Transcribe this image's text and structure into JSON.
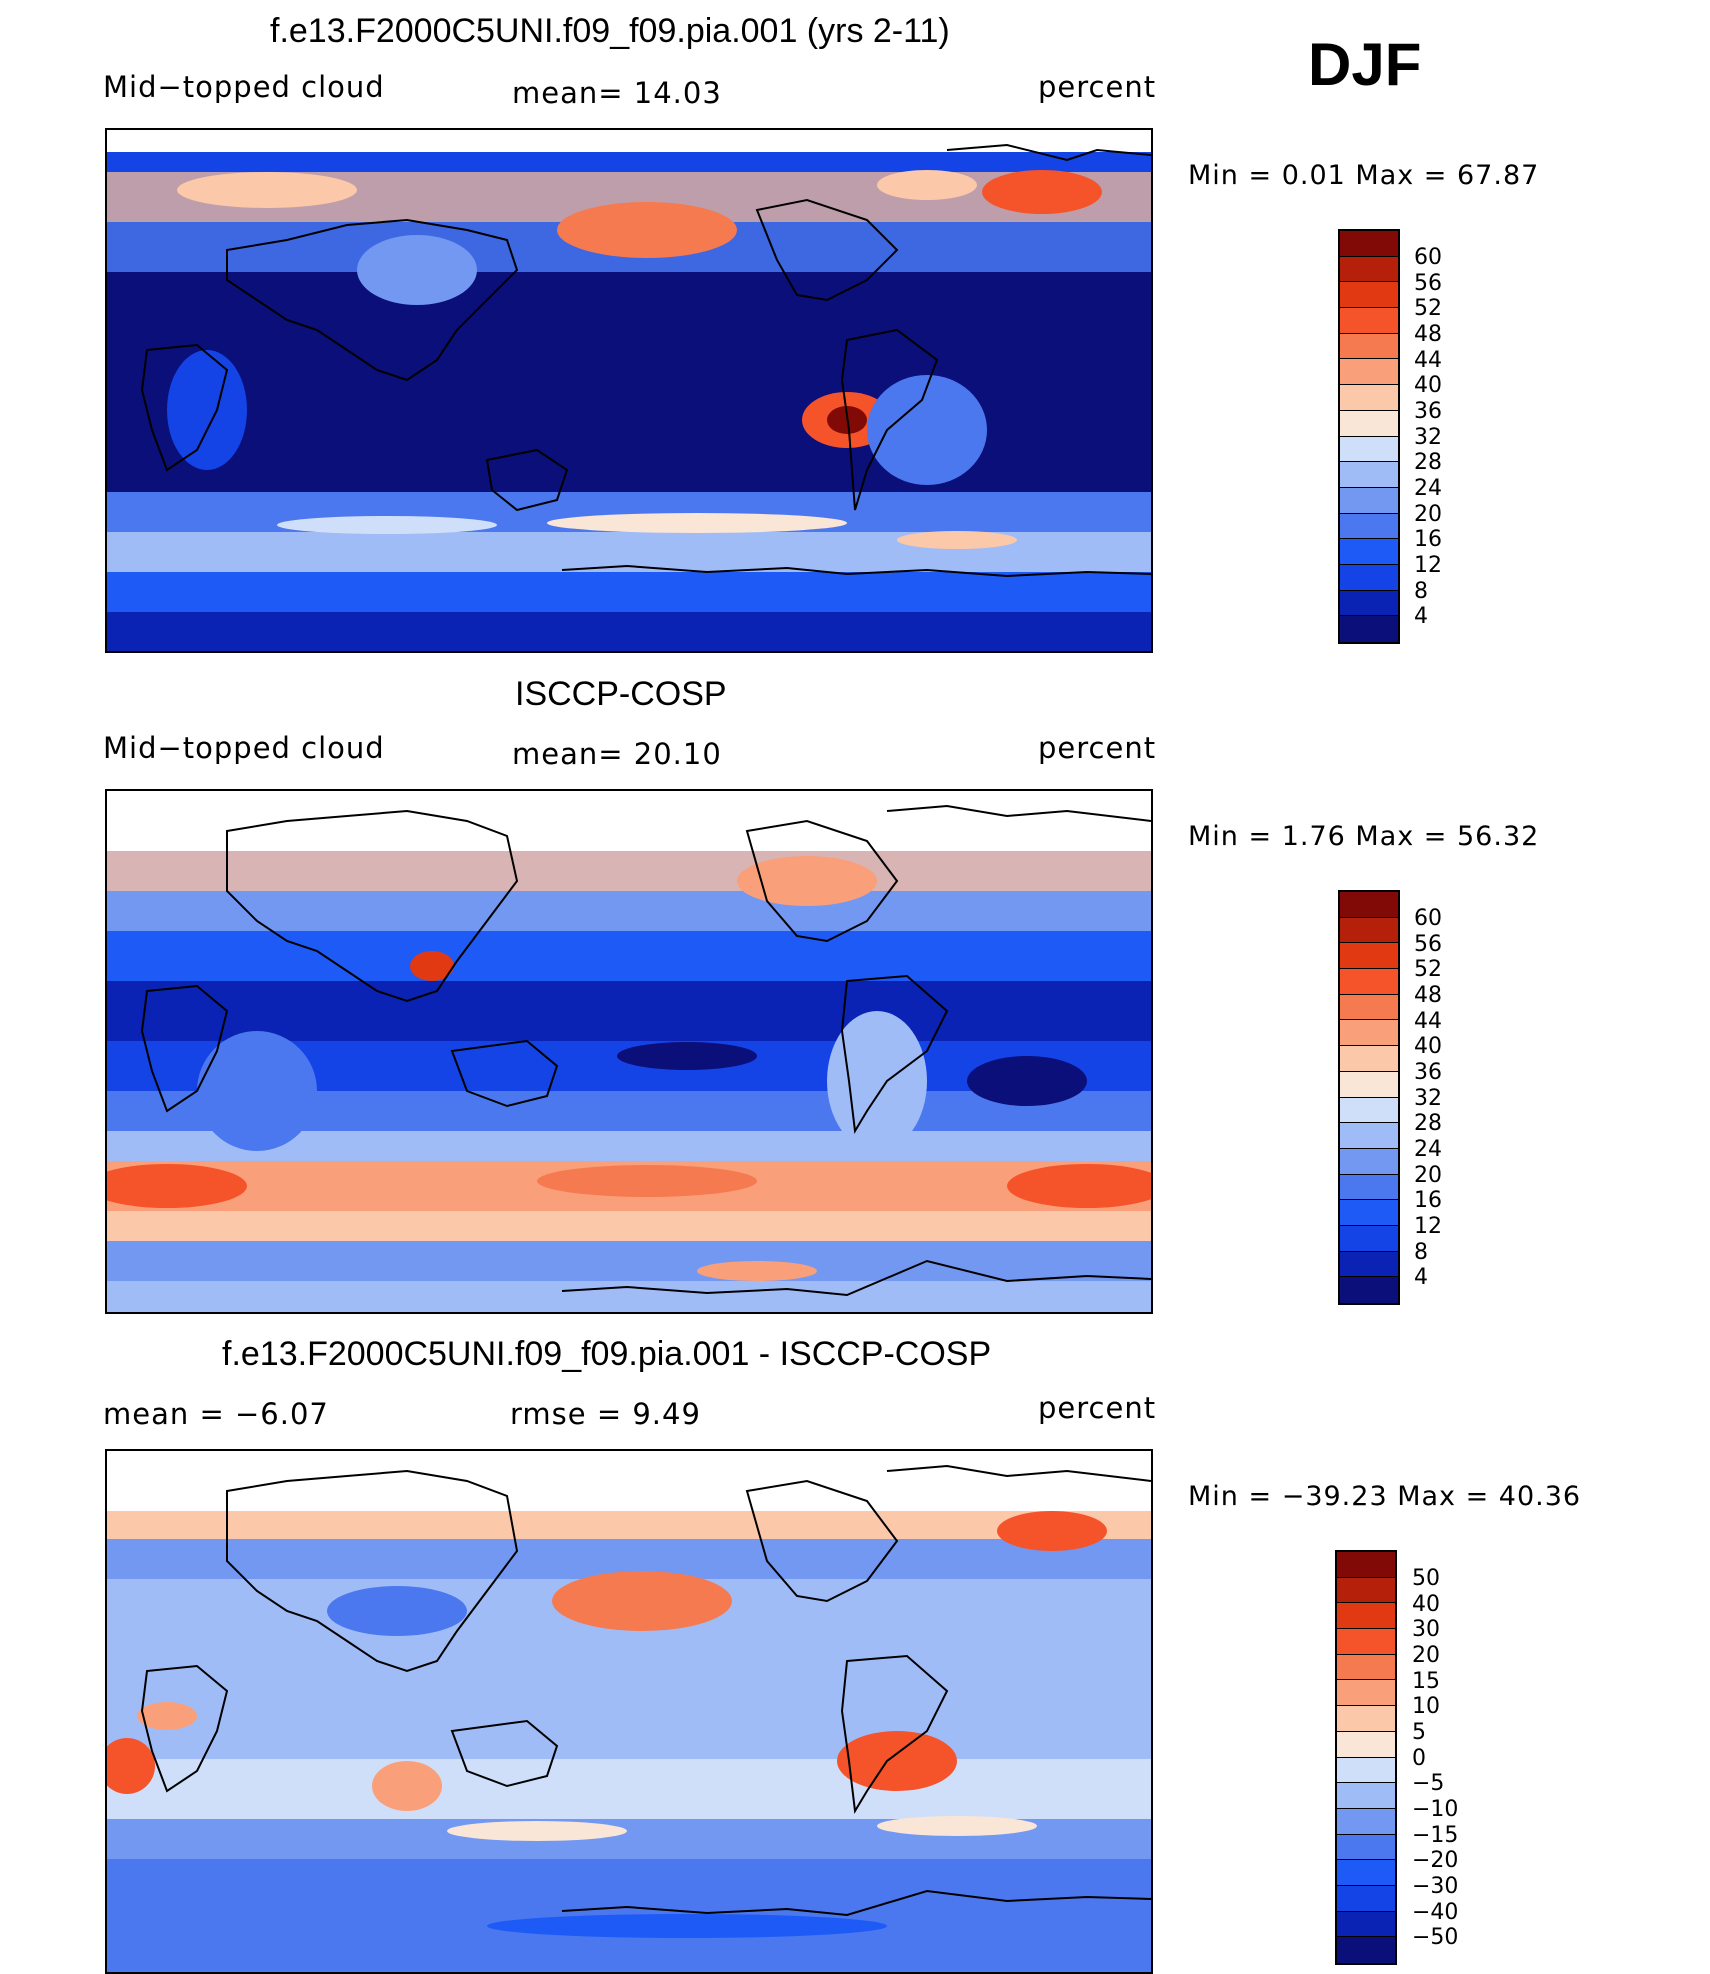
{
  "season": "DJF",
  "palette": {
    "abs": [
      "#0a0f7a",
      "#0a23b4",
      "#1443e6",
      "#1e5af5",
      "#4b78ee",
      "#7398f2",
      "#a0bcf7",
      "#cfdff9",
      "#fae6d7",
      "#fcc8aa",
      "#f9a07a",
      "#f67a50",
      "#f5532a",
      "#e13a12",
      "#b4200a",
      "#820a06"
    ],
    "diff": [
      "#0a0f7a",
      "#0a23b4",
      "#1443e6",
      "#1e5af5",
      "#4b78ee",
      "#7398f2",
      "#a0bcf7",
      "#cfdff9",
      "#fae6d7",
      "#fcc8aa",
      "#f9a07a",
      "#f67a50",
      "#f5532a",
      "#e13a12",
      "#b4200a",
      "#820a06"
    ]
  },
  "chart_data": [
    {
      "type": "heatmap",
      "title": "f.e13.F2000C5UNI.f09_f09.pia.001 (yrs 2-11)",
      "variable": "Mid−topped  cloud",
      "mean_text": "mean=    14.03",
      "mean": 14.03,
      "units": "percent",
      "min_text": "Min  =      0.01  Max  =     67.87",
      "min": 0.01,
      "max": 67.87,
      "colorbar_labels": [
        "60",
        "56",
        "52",
        "48",
        "44",
        "40",
        "36",
        "32",
        "28",
        "24",
        "20",
        "16",
        "12",
        "8",
        "4"
      ]
    },
    {
      "type": "heatmap",
      "title": "ISCCP-COSP",
      "variable": "Mid−topped  cloud",
      "mean_text": "mean=    20.10",
      "mean": 20.1,
      "units": "percent",
      "min_text": "Min  =      1.76  Max  =     56.32",
      "min": 1.76,
      "max": 56.32,
      "colorbar_labels": [
        "60",
        "56",
        "52",
        "48",
        "44",
        "40",
        "36",
        "32",
        "28",
        "24",
        "20",
        "16",
        "12",
        "8",
        "4"
      ]
    },
    {
      "type": "heatmap",
      "title": "f.e13.F2000C5UNI.f09_f09.pia.001 - ISCCP-COSP",
      "mean_text": "mean  =     −6.07",
      "mean": -6.07,
      "rmse_text": "rmse  =      9.49",
      "rmse": 9.49,
      "units": "percent",
      "min_text": "Min  = −39.23  Max  =     40.36",
      "min": -39.23,
      "max": 40.36,
      "colorbar_labels": [
        "50",
        "40",
        "30",
        "20",
        "15",
        "10",
        "5",
        "0",
        "−5",
        "−10",
        "−15",
        "−20",
        "−30",
        "−40",
        "−50"
      ]
    }
  ]
}
